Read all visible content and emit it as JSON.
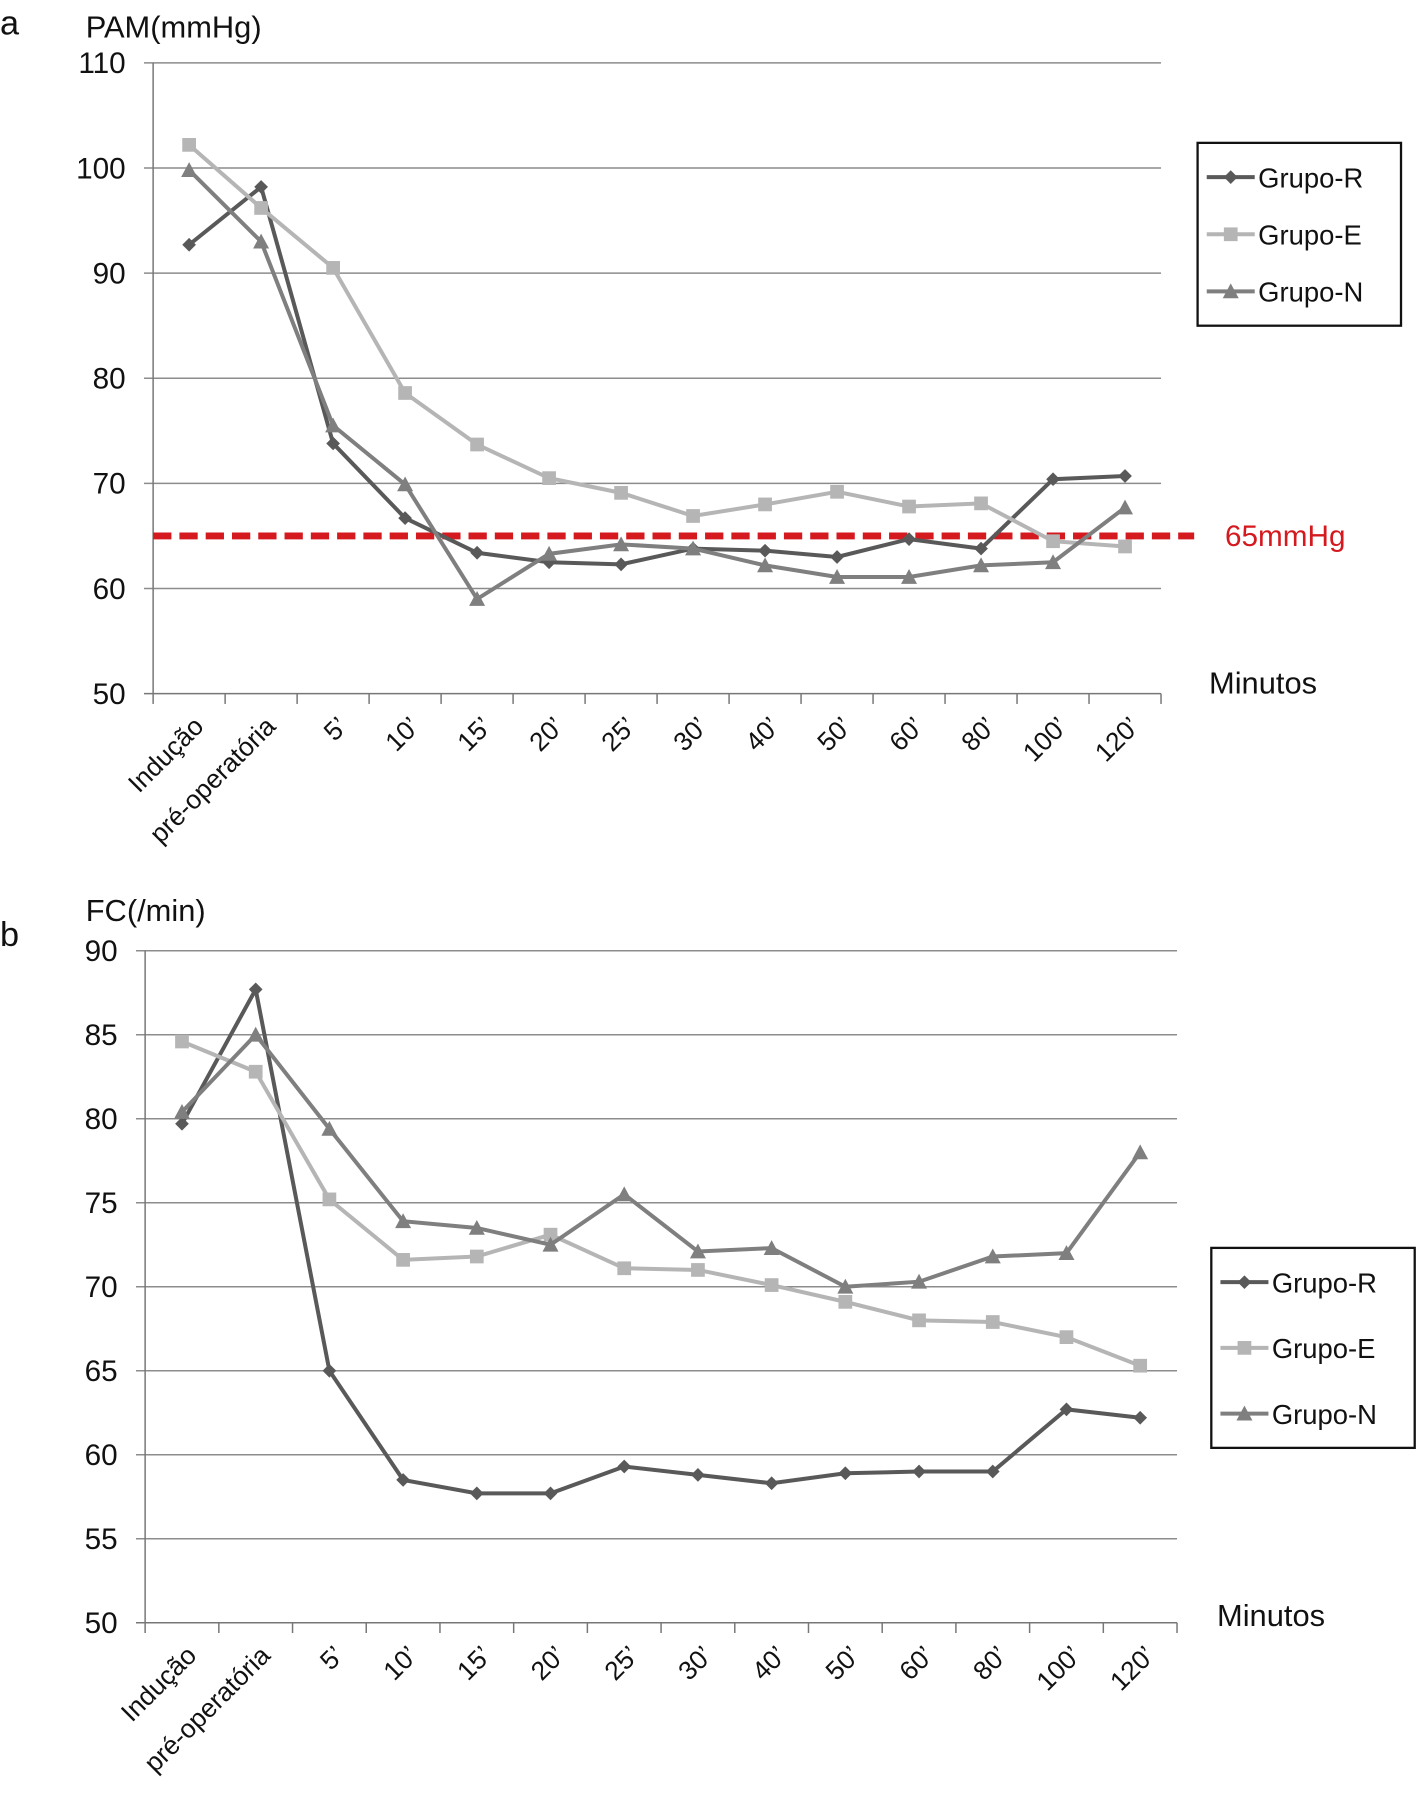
{
  "colors": {
    "Grupo-R": "#595959",
    "Grupo-E": "#b5b5b5",
    "Grupo-N": "#7f7f7f",
    "threshold": "#d41a1f",
    "grid": "#8c8c8c"
  },
  "chart_data": [
    {
      "panel": "a",
      "type": "line",
      "title": "",
      "ylabel": "PAM(mmHg)",
      "xlabel": "Minutos",
      "ylim": [
        50,
        110
      ],
      "yticks": [
        50,
        60,
        70,
        80,
        90,
        100,
        110
      ],
      "categories": [
        "Indução",
        "pré-operatória",
        "5’",
        "10’",
        "15’",
        "20’",
        "25’",
        "30’",
        "40’",
        "50’",
        "60’",
        "80’",
        "100’",
        "120’"
      ],
      "legend_position": "right",
      "threshold": {
        "value": 65,
        "label": "65mmHg"
      },
      "series": [
        {
          "name": "Grupo-R",
          "marker": "diamond",
          "values": [
            92.7,
            98.2,
            73.8,
            66.7,
            63.4,
            62.5,
            62.3,
            63.8,
            63.6,
            63.0,
            64.7,
            63.8,
            70.4,
            70.7
          ]
        },
        {
          "name": "Grupo-E",
          "marker": "square",
          "values": [
            102.2,
            96.2,
            90.5,
            78.6,
            73.7,
            70.5,
            69.1,
            66.9,
            68.0,
            69.2,
            67.8,
            68.1,
            64.5,
            64.0
          ]
        },
        {
          "name": "Grupo-N",
          "marker": "triangle",
          "values": [
            99.8,
            93.0,
            75.5,
            69.9,
            59.0,
            63.3,
            64.2,
            63.8,
            62.2,
            61.1,
            61.1,
            62.2,
            62.5,
            67.7
          ]
        }
      ]
    },
    {
      "panel": "b",
      "type": "line",
      "title": "",
      "ylabel": "FC(/min)",
      "xlabel": "Minutos",
      "ylim": [
        50,
        90
      ],
      "yticks": [
        50,
        55,
        60,
        65,
        70,
        75,
        80,
        85,
        90
      ],
      "categories": [
        "Indução",
        "pré-operatória",
        "5’",
        "10’",
        "15’",
        "20’",
        "25’",
        "30’",
        "40’",
        "50’",
        "60’",
        "80’",
        "100’",
        "120’"
      ],
      "legend_position": "right",
      "series": [
        {
          "name": "Grupo-R",
          "marker": "diamond",
          "values": [
            79.7,
            87.7,
            65.0,
            58.5,
            57.7,
            57.7,
            59.3,
            58.8,
            58.3,
            58.9,
            59.0,
            59.0,
            62.7,
            62.2
          ]
        },
        {
          "name": "Grupo-E",
          "marker": "square",
          "values": [
            84.6,
            82.8,
            75.2,
            71.6,
            71.8,
            73.1,
            71.1,
            71.0,
            70.1,
            69.1,
            68.0,
            67.9,
            67.0,
            65.3
          ]
        },
        {
          "name": "Grupo-N",
          "marker": "triangle",
          "values": [
            80.4,
            85.0,
            79.4,
            73.9,
            73.5,
            72.5,
            75.5,
            72.1,
            72.3,
            70.0,
            70.3,
            71.8,
            72.0,
            78.0
          ]
        }
      ]
    }
  ]
}
